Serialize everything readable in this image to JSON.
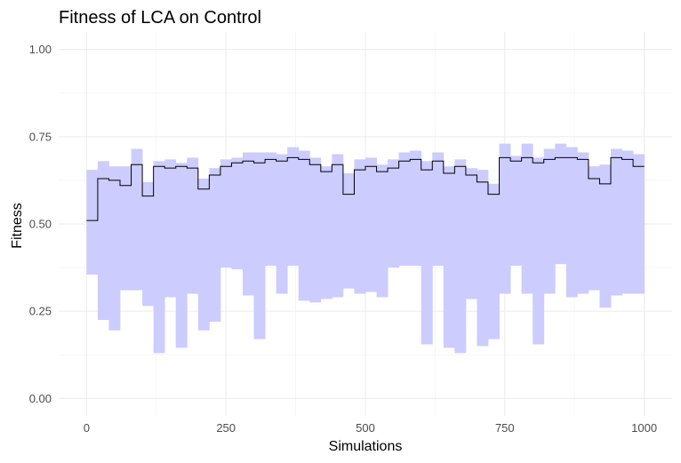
{
  "chart_data": {
    "type": "line",
    "title": "Fitness of LCA on Control",
    "xlabel": "Simulations",
    "ylabel": "Fitness",
    "xlim": [
      -50,
      1050
    ],
    "ylim": [
      -0.05,
      1.05
    ],
    "x_ticks": [
      0,
      250,
      500,
      750,
      1000
    ],
    "x_tick_labels": [
      "0",
      "250",
      "500",
      "750",
      "1000"
    ],
    "y_ticks": [
      0.0,
      0.25,
      0.5,
      0.75,
      1.0
    ],
    "y_tick_labels": [
      "0.00",
      "0.25",
      "0.50",
      "0.75",
      "1.00"
    ],
    "grid": true,
    "step_width": 20,
    "band_color": "#ccccff",
    "line_color": "#000000",
    "x": [
      0,
      20,
      40,
      60,
      80,
      100,
      120,
      140,
      160,
      180,
      200,
      220,
      240,
      260,
      280,
      300,
      320,
      340,
      360,
      380,
      400,
      420,
      440,
      460,
      480,
      500,
      520,
      540,
      560,
      580,
      600,
      620,
      640,
      660,
      680,
      700,
      720,
      740,
      760,
      780,
      800,
      820,
      840,
      860,
      880,
      900,
      920,
      940,
      960,
      980
    ],
    "mean": [
      0.51,
      0.63,
      0.625,
      0.61,
      0.67,
      0.58,
      0.665,
      0.66,
      0.665,
      0.66,
      0.6,
      0.64,
      0.665,
      0.675,
      0.68,
      0.675,
      0.685,
      0.68,
      0.69,
      0.685,
      0.67,
      0.65,
      0.67,
      0.585,
      0.655,
      0.665,
      0.65,
      0.66,
      0.68,
      0.685,
      0.655,
      0.68,
      0.645,
      0.665,
      0.64,
      0.62,
      0.585,
      0.69,
      0.68,
      0.69,
      0.675,
      0.685,
      0.69,
      0.69,
      0.685,
      0.63,
      0.615,
      0.69,
      0.685,
      0.665
    ],
    "upper": [
      0.655,
      0.68,
      0.665,
      0.665,
      0.715,
      0.62,
      0.68,
      0.685,
      0.675,
      0.69,
      0.63,
      0.66,
      0.685,
      0.69,
      0.705,
      0.705,
      0.705,
      0.7,
      0.72,
      0.71,
      0.69,
      0.665,
      0.7,
      0.645,
      0.685,
      0.69,
      0.67,
      0.685,
      0.705,
      0.71,
      0.68,
      0.705,
      0.665,
      0.685,
      0.66,
      0.655,
      0.615,
      0.73,
      0.695,
      0.73,
      0.69,
      0.715,
      0.73,
      0.72,
      0.705,
      0.665,
      0.67,
      0.715,
      0.71,
      0.7
    ],
    "lower": [
      0.355,
      0.225,
      0.195,
      0.31,
      0.31,
      0.265,
      0.13,
      0.29,
      0.145,
      0.3,
      0.195,
      0.22,
      0.375,
      0.37,
      0.295,
      0.17,
      0.38,
      0.3,
      0.38,
      0.28,
      0.275,
      0.285,
      0.29,
      0.315,
      0.3,
      0.305,
      0.29,
      0.375,
      0.38,
      0.38,
      0.155,
      0.38,
      0.145,
      0.13,
      0.285,
      0.15,
      0.17,
      0.3,
      0.38,
      0.3,
      0.155,
      0.3,
      0.385,
      0.29,
      0.3,
      0.31,
      0.26,
      0.295,
      0.3,
      0.3
    ]
  }
}
